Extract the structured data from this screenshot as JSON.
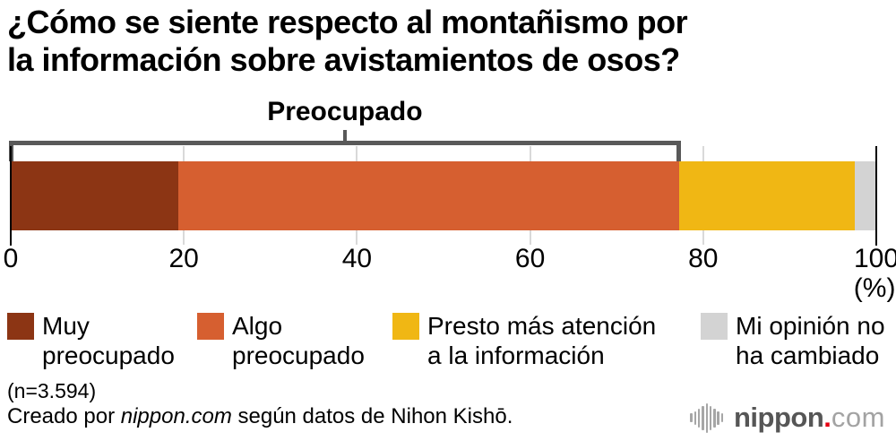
{
  "title": {
    "line1": "¿Cómo se siente respecto al montañismo por",
    "line2": "la información sobre avistamientos de osos?"
  },
  "chart_data": {
    "type": "bar",
    "stacked": true,
    "orientation": "horizontal",
    "title": "¿Cómo se siente respecto al montañismo por la información sobre avistamientos de osos?",
    "categories": [
      "Muy preocupado",
      "Algo preocupado",
      "Presto más atención a la información",
      "Mi opinión no ha cambiado"
    ],
    "values": [
      19.4,
      57.8,
      20.3,
      2.5
    ],
    "unit": "%",
    "colors": [
      "#8C3514",
      "#D65F30",
      "#F0B714",
      "#D3D3D3"
    ],
    "x_ticks": [
      0,
      20,
      40,
      60,
      80,
      100
    ],
    "xlim": [
      0,
      100
    ],
    "x_unit_label": "(%)",
    "bracket": {
      "label": "Preocupado",
      "from": 0,
      "to": 77.2
    },
    "sample_size": "n=3.594",
    "grid": true,
    "legend_position": "bottom"
  },
  "legend": {
    "items": [
      {
        "line1": "Muy",
        "line2": "preocupado",
        "color": "#8C3514"
      },
      {
        "line1": "Algo",
        "line2": "preocupado",
        "color": "#D65F30"
      },
      {
        "line1": "Presto más atención",
        "line2": "a la información",
        "color": "#F0B714"
      },
      {
        "line1": "Mi opinión no",
        "line2": "ha cambiado",
        "color": "#D3D3D3"
      }
    ]
  },
  "axis": {
    "unit_label": "(%)"
  },
  "footer": {
    "sample": "(n=3.594)",
    "credit_prefix": "Creado por ",
    "credit_source": "nippon.com",
    "credit_suffix": " según datos de Nihon Kishō.",
    "logo": {
      "wordmark": "nippon",
      "dot": ".",
      "tld": "com",
      "accent_color": "#E60012"
    }
  },
  "style": {
    "bracket_color": "#595959",
    "gridline_color": "#D9D9D9",
    "axis_line_color": "#000000"
  }
}
